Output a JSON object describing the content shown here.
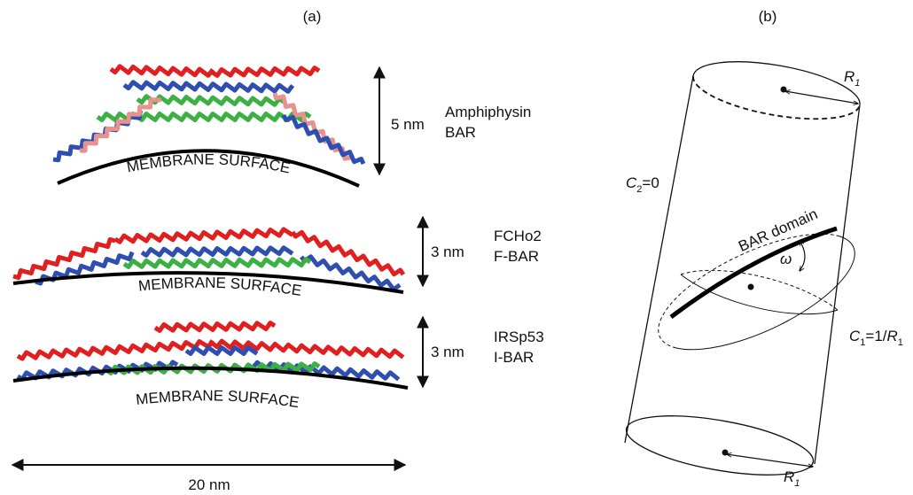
{
  "panel_a": {
    "label": "(a)",
    "proteins": [
      {
        "height": "5 nm",
        "name": "Amphiphysin",
        "domain": "BAR",
        "membrane": "MEMBRANE SURFACE"
      },
      {
        "height": "3 nm",
        "name": "FCHo2",
        "domain": "F-BAR",
        "membrane": "MEMBRANE SURFACE"
      },
      {
        "height": "3 nm",
        "name": "IRSp53",
        "domain": "I-BAR",
        "membrane": "MEMBRANE SURFACE"
      }
    ],
    "width": "20 nm"
  },
  "panel_b": {
    "label": "(b)",
    "top_radius": {
      "symbol": "R",
      "subscript": "1"
    },
    "bottom_radius": {
      "symbol": "R",
      "subscript": "1"
    },
    "c2": {
      "symbol": "C",
      "subscript": "2",
      "rest": "=0"
    },
    "domain": "BAR domain",
    "angle": "ω",
    "c1": {
      "symbol": "C",
      "subscript": "1",
      "middle": "=1/",
      "symbol2": "R",
      "subscript2": "1"
    }
  }
}
